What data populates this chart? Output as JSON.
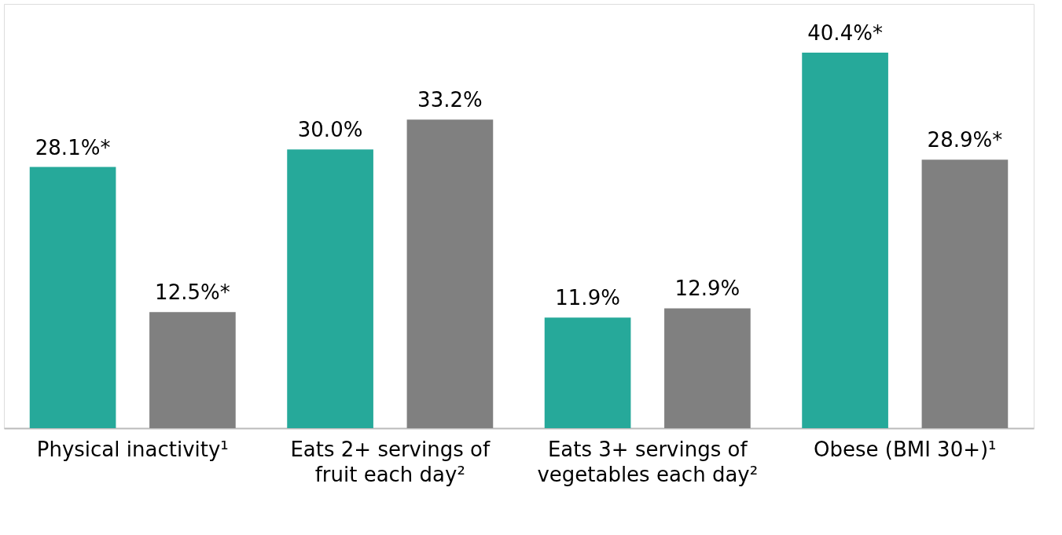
{
  "chart_data": {
    "type": "bar",
    "categories": [
      "Physical inactivity¹",
      "Eats 2+ servings of fruit each day²",
      "Eats 3+ servings of vegetables each day²",
      "Obese (BMI 30+)¹"
    ],
    "series": [
      {
        "color": "#26a99a",
        "values": [
          28.1,
          30.0,
          11.9,
          40.4
        ],
        "value_labels": [
          "28.1%*",
          "30.0%",
          "11.9%",
          "40.4%*"
        ]
      },
      {
        "color": "#808080",
        "values": [
          12.5,
          33.2,
          12.9,
          28.9
        ],
        "value_labels": [
          "12.5%*",
          "33.2%",
          "12.9%",
          "28.9%*"
        ]
      }
    ],
    "tick_labels": "x",
    "grid": false,
    "legend": false
  }
}
